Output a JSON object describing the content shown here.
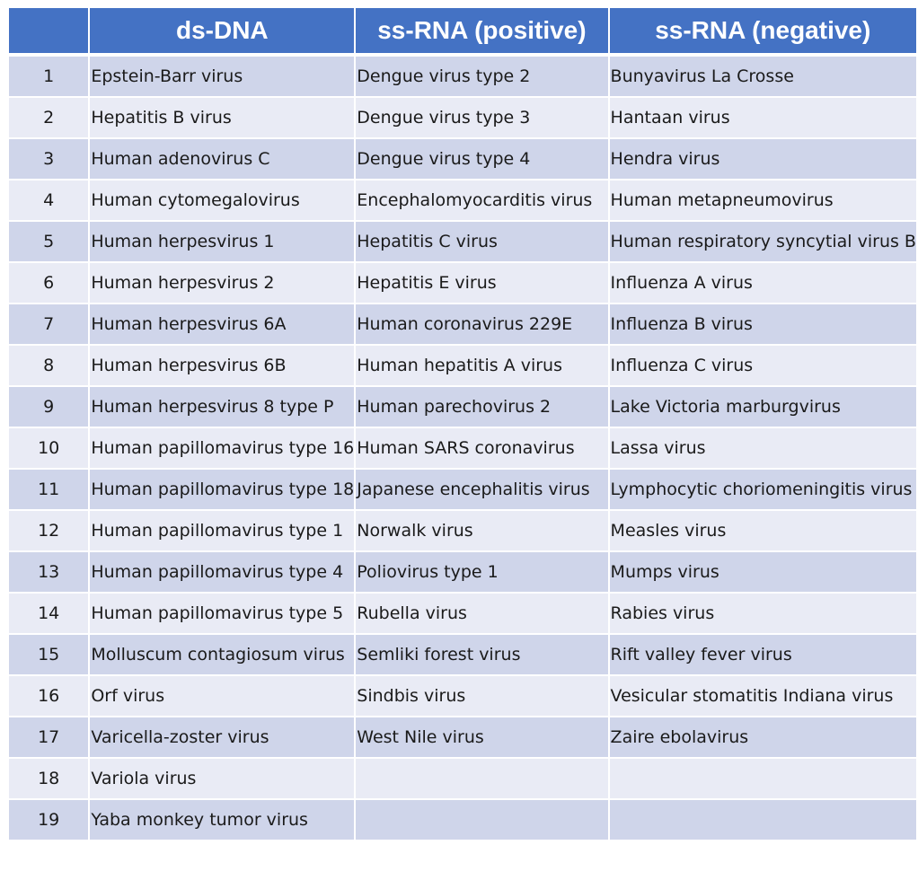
{
  "table": {
    "headers": [
      "",
      "ds-DNA",
      "ss-RNA (positive)",
      "ss-RNA (negative)"
    ],
    "rows": [
      [
        "1",
        "Epstein-Barr virus",
        "Dengue virus type 2",
        "Bunyavirus La Crosse"
      ],
      [
        "2",
        "Hepatitis B virus",
        "Dengue virus type 3",
        "Hantaan virus"
      ],
      [
        "3",
        "Human adenovirus C",
        "Dengue virus type 4",
        "Hendra virus"
      ],
      [
        "4",
        "Human cytomegalovirus",
        "Encephalomyocarditis virus",
        "Human metapneumovirus"
      ],
      [
        "5",
        "Human herpesvirus 1",
        "Hepatitis C virus",
        "Human respiratory syncytial virus B"
      ],
      [
        "6",
        "Human herpesvirus 2",
        "Hepatitis E virus",
        "Influenza A virus"
      ],
      [
        "7",
        "Human herpesvirus 6A",
        "Human coronavirus 229E",
        "Influenza B virus"
      ],
      [
        "8",
        "Human herpesvirus 6B",
        "Human hepatitis A virus",
        "Influenza C virus"
      ],
      [
        "9",
        "Human herpesvirus 8 type P",
        "Human parechovirus 2",
        "Lake Victoria marburgvirus"
      ],
      [
        "10",
        "Human papillomavirus type 16",
        "Human SARS coronavirus",
        "Lassa virus"
      ],
      [
        "11",
        "Human papillomavirus type 18",
        "Japanese encephalitis virus",
        "Lymphocytic choriomeningitis virus"
      ],
      [
        "12",
        "Human papillomavirus type 1",
        "Norwalk virus",
        "Measles virus"
      ],
      [
        "13",
        "Human papillomavirus type 4",
        "Poliovirus type 1",
        "Mumps virus"
      ],
      [
        "14",
        "Human papillomavirus type 5",
        "Rubella virus",
        "Rabies virus"
      ],
      [
        "15",
        "Molluscum contagiosum virus",
        "Semliki forest virus",
        "Rift valley fever virus"
      ],
      [
        "16",
        "Orf virus",
        "Sindbis virus",
        "Vesicular stomatitis Indiana virus"
      ],
      [
        "17",
        "Varicella-zoster virus",
        "West Nile virus",
        "Zaire ebolavirus"
      ],
      [
        "18",
        "Variola virus",
        "",
        ""
      ],
      [
        "19",
        "Yaba monkey tumor virus",
        "",
        ""
      ]
    ]
  },
  "colors": {
    "header_bg": "#4472c4",
    "row_odd": "#cfd5ea",
    "row_even": "#e9ebf5"
  }
}
